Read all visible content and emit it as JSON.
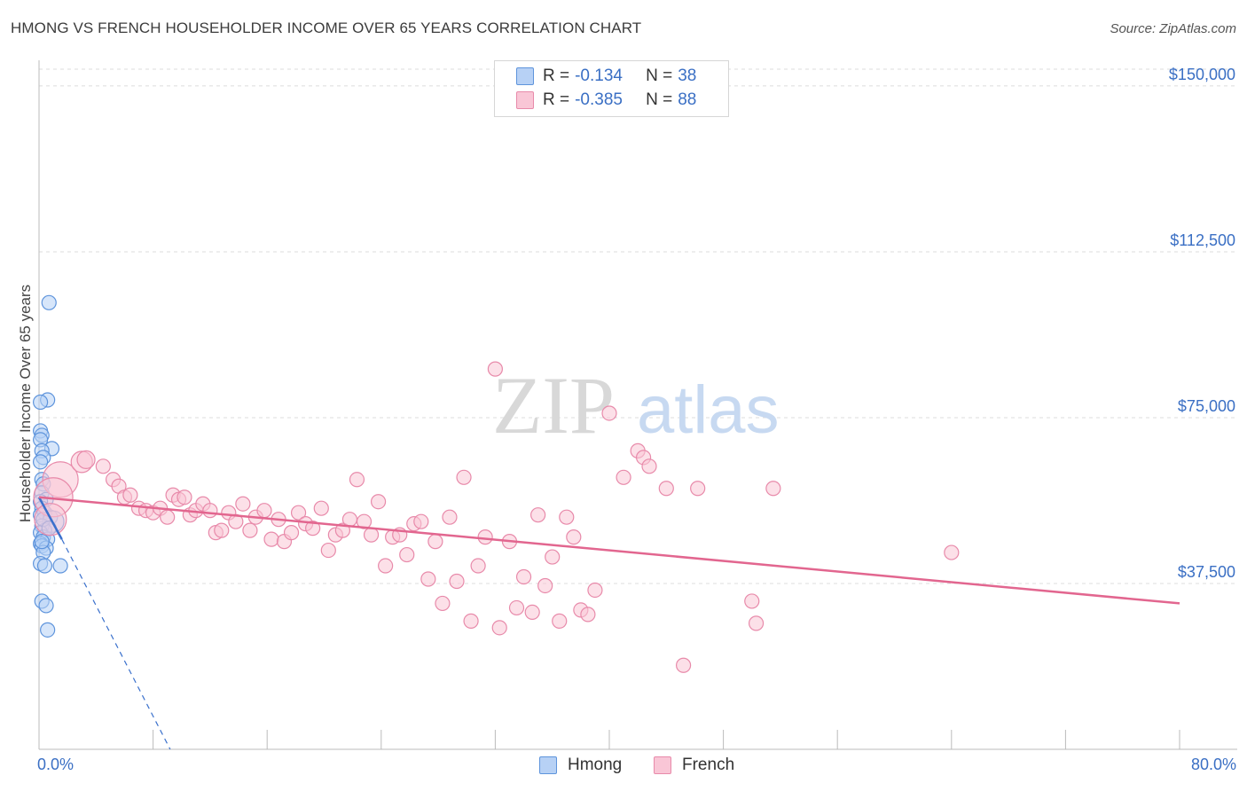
{
  "title": "HMONG VS FRENCH HOUSEHOLDER INCOME OVER 65 YEARS CORRELATION CHART",
  "source": "Source: ZipAtlas.com",
  "watermark": {
    "zip": "ZIP",
    "atlas": "atlas"
  },
  "legend": {
    "rows": [
      {
        "r_label": "R =",
        "r_value": "-0.134",
        "n_label": "N =",
        "n_value": "38"
      },
      {
        "r_label": "R =",
        "r_value": "-0.385",
        "n_label": "N =",
        "n_value": "88"
      }
    ]
  },
  "bottom_legend": {
    "hmong": "Hmong",
    "french": "French"
  },
  "colors": {
    "hmong_fill": "#b7d1f5",
    "hmong_stroke": "#5e94dc",
    "hmong_line": "#3a70cc",
    "french_fill": "#f9c6d6",
    "french_stroke": "#e88aaa",
    "french_line": "#e2668f",
    "tick_label": "#3a6fc4",
    "grid": "#dcdcdc"
  },
  "chart_data": {
    "type": "scatter",
    "title": "HMONG VS FRENCH HOUSEHOLDER INCOME OVER 65 YEARS CORRELATION CHART",
    "xlabel": "",
    "ylabel": "Householder Income Over 65 years",
    "xlim": [
      0,
      80
    ],
    "ylim": [
      0,
      155000
    ],
    "x_tick_labels": [
      "0.0%",
      "80.0%"
    ],
    "y_ticks": [
      {
        "value": 37500,
        "label": "$37,500"
      },
      {
        "value": 75000,
        "label": "$75,000"
      },
      {
        "value": 112500,
        "label": "$112,500"
      },
      {
        "value": 150000,
        "label": "$150,000"
      }
    ],
    "grid": true,
    "legend_position": "top-center",
    "series": [
      {
        "name": "Hmong",
        "r": -0.134,
        "n": 38,
        "trend": {
          "x_start": 0,
          "y_start": 57000,
          "x_end": 1.6,
          "y_end": 47500,
          "dashed_x_end": 9.2,
          "dashed_y_end": 0
        },
        "points": [
          [
            0.7,
            101000,
            8
          ],
          [
            0.6,
            79000,
            8
          ],
          [
            0.1,
            78500,
            8
          ],
          [
            0.1,
            72000,
            8
          ],
          [
            0.2,
            71000,
            8
          ],
          [
            0.1,
            70000,
            8
          ],
          [
            0.9,
            68000,
            8
          ],
          [
            0.2,
            67500,
            8
          ],
          [
            0.3,
            66000,
            8
          ],
          [
            0.1,
            65000,
            8
          ],
          [
            0.2,
            61000,
            8
          ],
          [
            0.3,
            60000,
            8
          ],
          [
            0.2,
            58000,
            8
          ],
          [
            0.5,
            56500,
            8
          ],
          [
            0.1,
            56000,
            8
          ],
          [
            0.2,
            54500,
            8
          ],
          [
            0.4,
            53500,
            8
          ],
          [
            0.1,
            53000,
            8
          ],
          [
            0.8,
            52500,
            8
          ],
          [
            1.0,
            51500,
            12
          ],
          [
            0.2,
            50500,
            8
          ],
          [
            0.4,
            49500,
            8
          ],
          [
            0.1,
            49000,
            8
          ],
          [
            0.3,
            48000,
            8
          ],
          [
            0.6,
            47500,
            8
          ],
          [
            0.1,
            46500,
            8
          ],
          [
            0.2,
            46000,
            8
          ],
          [
            0.5,
            45500,
            8
          ],
          [
            0.3,
            44500,
            8
          ],
          [
            0.1,
            42000,
            8
          ],
          [
            0.4,
            41500,
            8
          ],
          [
            1.5,
            41500,
            8
          ],
          [
            0.2,
            33500,
            8
          ],
          [
            0.5,
            32500,
            8
          ],
          [
            0.6,
            27000,
            8
          ],
          [
            0.3,
            52000,
            8
          ],
          [
            0.7,
            50000,
            8
          ],
          [
            0.2,
            47000,
            8
          ]
        ]
      },
      {
        "name": "French",
        "r": -0.385,
        "n": 88,
        "trend": {
          "x_start": 0,
          "y_start": 57000,
          "x_end": 80,
          "y_end": 33000
        },
        "points": [
          [
            1.5,
            61000,
            20
          ],
          [
            1.0,
            57000,
            22
          ],
          [
            0.8,
            52000,
            18
          ],
          [
            3.0,
            65000,
            12
          ],
          [
            3.3,
            65500,
            10
          ],
          [
            4.5,
            64000,
            8
          ],
          [
            5.2,
            61000,
            8
          ],
          [
            5.6,
            59500,
            8
          ],
          [
            6.0,
            57000,
            8
          ],
          [
            6.4,
            57500,
            8
          ],
          [
            7.0,
            54500,
            8
          ],
          [
            7.5,
            54000,
            8
          ],
          [
            8.0,
            53500,
            8
          ],
          [
            8.5,
            54500,
            8
          ],
          [
            9.0,
            52500,
            8
          ],
          [
            9.4,
            57500,
            8
          ],
          [
            9.8,
            56500,
            8
          ],
          [
            10.2,
            57000,
            8
          ],
          [
            10.6,
            53000,
            8
          ],
          [
            11.0,
            54000,
            8
          ],
          [
            11.5,
            55500,
            8
          ],
          [
            12.0,
            54000,
            8
          ],
          [
            12.4,
            49000,
            8
          ],
          [
            12.8,
            49500,
            8
          ],
          [
            13.3,
            53500,
            8
          ],
          [
            13.8,
            51500,
            8
          ],
          [
            14.3,
            55500,
            8
          ],
          [
            14.8,
            49500,
            8
          ],
          [
            15.2,
            52500,
            8
          ],
          [
            15.8,
            54000,
            8
          ],
          [
            16.3,
            47500,
            8
          ],
          [
            16.8,
            52000,
            8
          ],
          [
            17.2,
            47000,
            8
          ],
          [
            17.7,
            49000,
            8
          ],
          [
            18.2,
            53500,
            8
          ],
          [
            18.7,
            51000,
            8
          ],
          [
            19.2,
            50000,
            8
          ],
          [
            19.8,
            54500,
            8
          ],
          [
            20.3,
            45000,
            8
          ],
          [
            20.8,
            48500,
            8
          ],
          [
            21.3,
            49500,
            8
          ],
          [
            21.8,
            52000,
            8
          ],
          [
            22.3,
            61000,
            8
          ],
          [
            22.8,
            51500,
            8
          ],
          [
            23.3,
            48500,
            8
          ],
          [
            23.8,
            56000,
            8
          ],
          [
            24.3,
            41500,
            8
          ],
          [
            24.8,
            48000,
            8
          ],
          [
            25.3,
            48500,
            8
          ],
          [
            25.8,
            44000,
            8
          ],
          [
            26.3,
            51000,
            8
          ],
          [
            26.8,
            51500,
            8
          ],
          [
            27.3,
            38500,
            8
          ],
          [
            27.8,
            47000,
            8
          ],
          [
            28.3,
            33000,
            8
          ],
          [
            28.8,
            52500,
            8
          ],
          [
            29.3,
            38000,
            8
          ],
          [
            29.8,
            61500,
            8
          ],
          [
            30.3,
            29000,
            8
          ],
          [
            30.8,
            41500,
            8
          ],
          [
            31.3,
            48000,
            8
          ],
          [
            32.0,
            86000,
            8
          ],
          [
            32.3,
            27500,
            8
          ],
          [
            33.0,
            47000,
            8
          ],
          [
            33.5,
            32000,
            8
          ],
          [
            34.0,
            39000,
            8
          ],
          [
            34.6,
            31000,
            8
          ],
          [
            35.0,
            53000,
            8
          ],
          [
            35.5,
            37000,
            8
          ],
          [
            36.0,
            43500,
            8
          ],
          [
            36.5,
            29000,
            8
          ],
          [
            37.0,
            52500,
            8
          ],
          [
            37.5,
            48000,
            8
          ],
          [
            38.0,
            31500,
            8
          ],
          [
            38.5,
            30500,
            8
          ],
          [
            39.0,
            36000,
            8
          ],
          [
            40.0,
            76000,
            8
          ],
          [
            41.0,
            61500,
            8
          ],
          [
            42.0,
            67500,
            8
          ],
          [
            42.4,
            66000,
            8
          ],
          [
            42.8,
            64000,
            8
          ],
          [
            44.0,
            59000,
            8
          ],
          [
            45.2,
            19000,
            8
          ],
          [
            46.2,
            59000,
            8
          ],
          [
            50.0,
            33500,
            8
          ],
          [
            50.3,
            28500,
            8
          ],
          [
            51.5,
            59000,
            8
          ],
          [
            64.0,
            44500,
            8
          ]
        ]
      }
    ]
  }
}
